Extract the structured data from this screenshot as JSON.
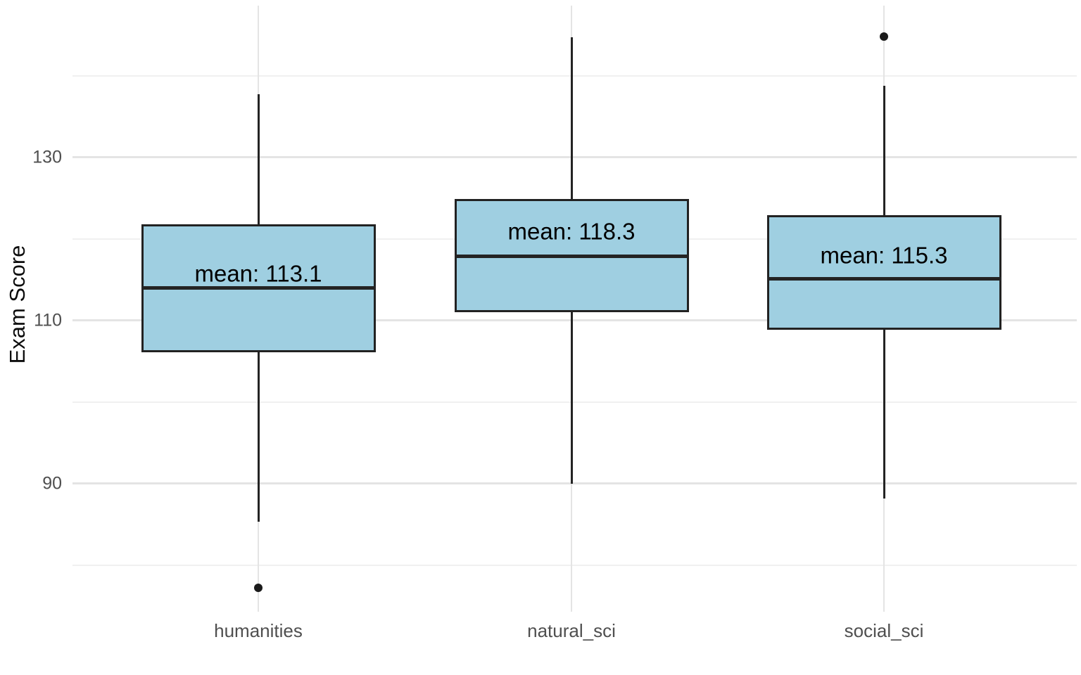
{
  "chart_data": {
    "type": "boxplot",
    "title": "",
    "xlabel": "",
    "ylabel": "Exam Score",
    "categories": [
      "humanities",
      "natural_sci",
      "social_sci"
    ],
    "series": [
      {
        "category": "humanities",
        "whisker_low": 85.3,
        "q1": 106.1,
        "median": 114.0,
        "q3": 121.8,
        "whisker_high": 137.7,
        "mean": 113.1,
        "mean_label": "mean: 113.1",
        "outliers": [
          77.2
        ]
      },
      {
        "category": "natural_sci",
        "whisker_low": 90.0,
        "q1": 111.0,
        "median": 117.9,
        "q3": 124.9,
        "whisker_high": 144.7,
        "mean": 118.3,
        "mean_label": "mean: 118.3",
        "outliers": []
      },
      {
        "category": "social_sci",
        "whisker_low": 88.2,
        "q1": 108.9,
        "median": 115.1,
        "q3": 122.9,
        "whisker_high": 138.8,
        "mean": 115.3,
        "mean_label": "mean: 115.3",
        "outliers": [
          144.8
        ]
      }
    ],
    "y_axis": {
      "label": "Exam Score",
      "ticks": [
        90,
        110,
        130
      ],
      "minor_ticks": [
        80,
        100,
        120,
        140
      ],
      "ylim": [
        74.3,
        148.6
      ]
    },
    "grid": true,
    "legend": false,
    "colors": {
      "box_fill": "#9FCFE1",
      "box_border": "#222222",
      "median": "#242424",
      "whisker": "#242424",
      "outlier": "#1b1b1b",
      "grid_major": "#E4E4E4",
      "grid_minor": "#F0F0F0",
      "axis_text": "#4f4f4f",
      "axis_title": "#0d0d0d",
      "background": "#ffffff"
    }
  }
}
